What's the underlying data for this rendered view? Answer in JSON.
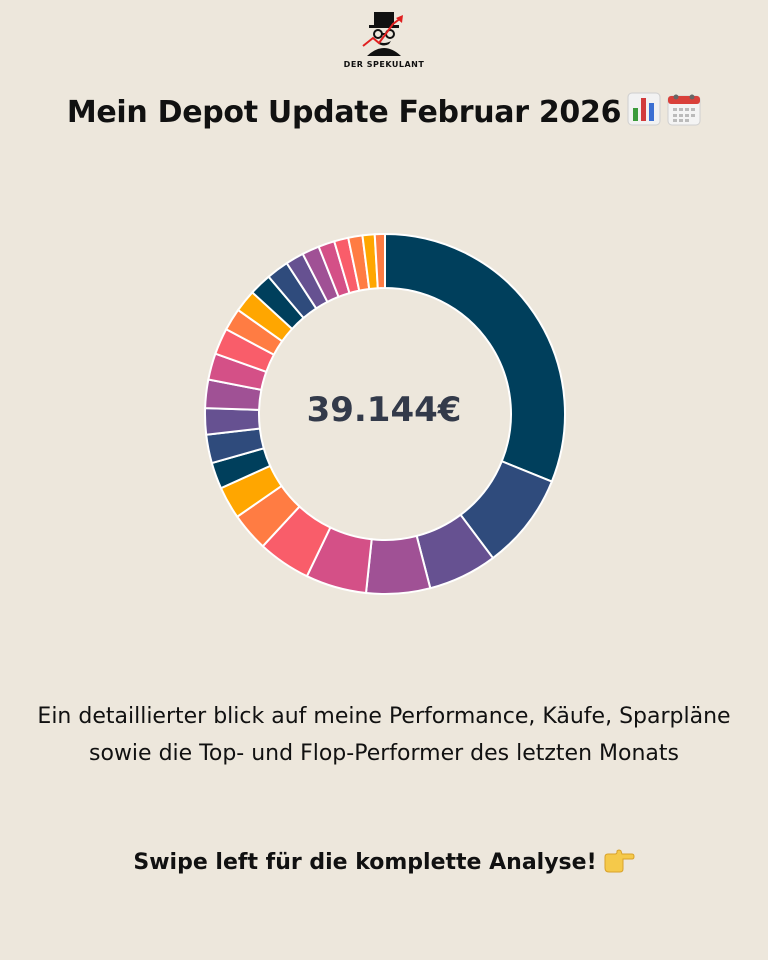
{
  "brand": {
    "name": "DER SPEKULANT"
  },
  "title": "Mein Depot Update Februar 2026",
  "chart_data": {
    "type": "donut",
    "center_label": "39.144€",
    "values": [
      34.2,
      9.5,
      6.8,
      6.3,
      6.0,
      5.2,
      3.8,
      3.2,
      2.6,
      2.8,
      2.6,
      2.8,
      2.6,
      2.6,
      2.2,
      2.2,
      2.2,
      2.2,
      1.8,
      1.7,
      1.6,
      1.4,
      1.4,
      1.2,
      1.0
    ],
    "colors": [
      "#003f5c",
      "#2f4b7c",
      "#665191",
      "#a05195",
      "#d45087",
      "#f95d6a",
      "#ff7c43",
      "#ffa600",
      "#003f5c",
      "#2f4b7c",
      "#665191",
      "#a05195",
      "#d45087",
      "#f95d6a",
      "#ff7c43",
      "#ffa600",
      "#003f5c",
      "#2f4b7c",
      "#665191",
      "#a05195",
      "#d45087",
      "#f95d6a",
      "#ff7c43",
      "#ffa600",
      "#ff7c43"
    ]
  },
  "description": "Ein detaillierter blick auf meine Performance, Käufe, Sparpläne sowie die Top- und Flop-Performer des letzten Monats",
  "cta": "Swipe left für die komplette Analyse!"
}
